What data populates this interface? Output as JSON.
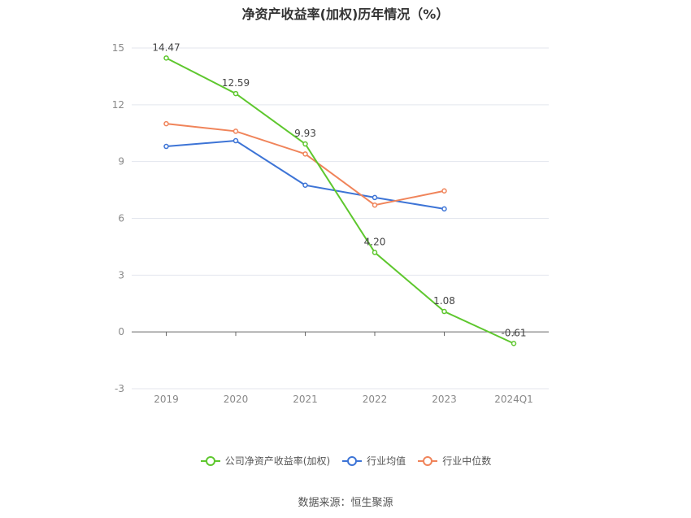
{
  "title": "净资产收益率(加权)历年情况（%）",
  "source": "数据来源：恒生聚源",
  "chart_data": {
    "type": "line",
    "title": "净资产收益率(加权)历年情况（%）",
    "categories": [
      "2019",
      "2020",
      "2021",
      "2022",
      "2023",
      "2024Q1"
    ],
    "ylim": [
      -3,
      15
    ],
    "yticks": [
      -3,
      0,
      3,
      6,
      9,
      12,
      15
    ],
    "grid": true,
    "legend_position": "bottom",
    "series": [
      {
        "name": "公司净资产收益率(加权)",
        "color": "#5ec72e",
        "values": [
          14.47,
          12.59,
          9.93,
          4.2,
          1.08,
          -0.61
        ],
        "labels": [
          "14.47",
          "12.59",
          "9.93",
          "4.20",
          "1.08",
          "-0.61"
        ]
      },
      {
        "name": "行业均值",
        "color": "#3d74d6",
        "values": [
          9.8,
          10.1,
          7.75,
          7.1,
          6.5,
          null
        ]
      },
      {
        "name": "行业中位数",
        "color": "#f0845a",
        "values": [
          11.0,
          10.6,
          9.4,
          6.7,
          7.45,
          null
        ]
      }
    ]
  }
}
